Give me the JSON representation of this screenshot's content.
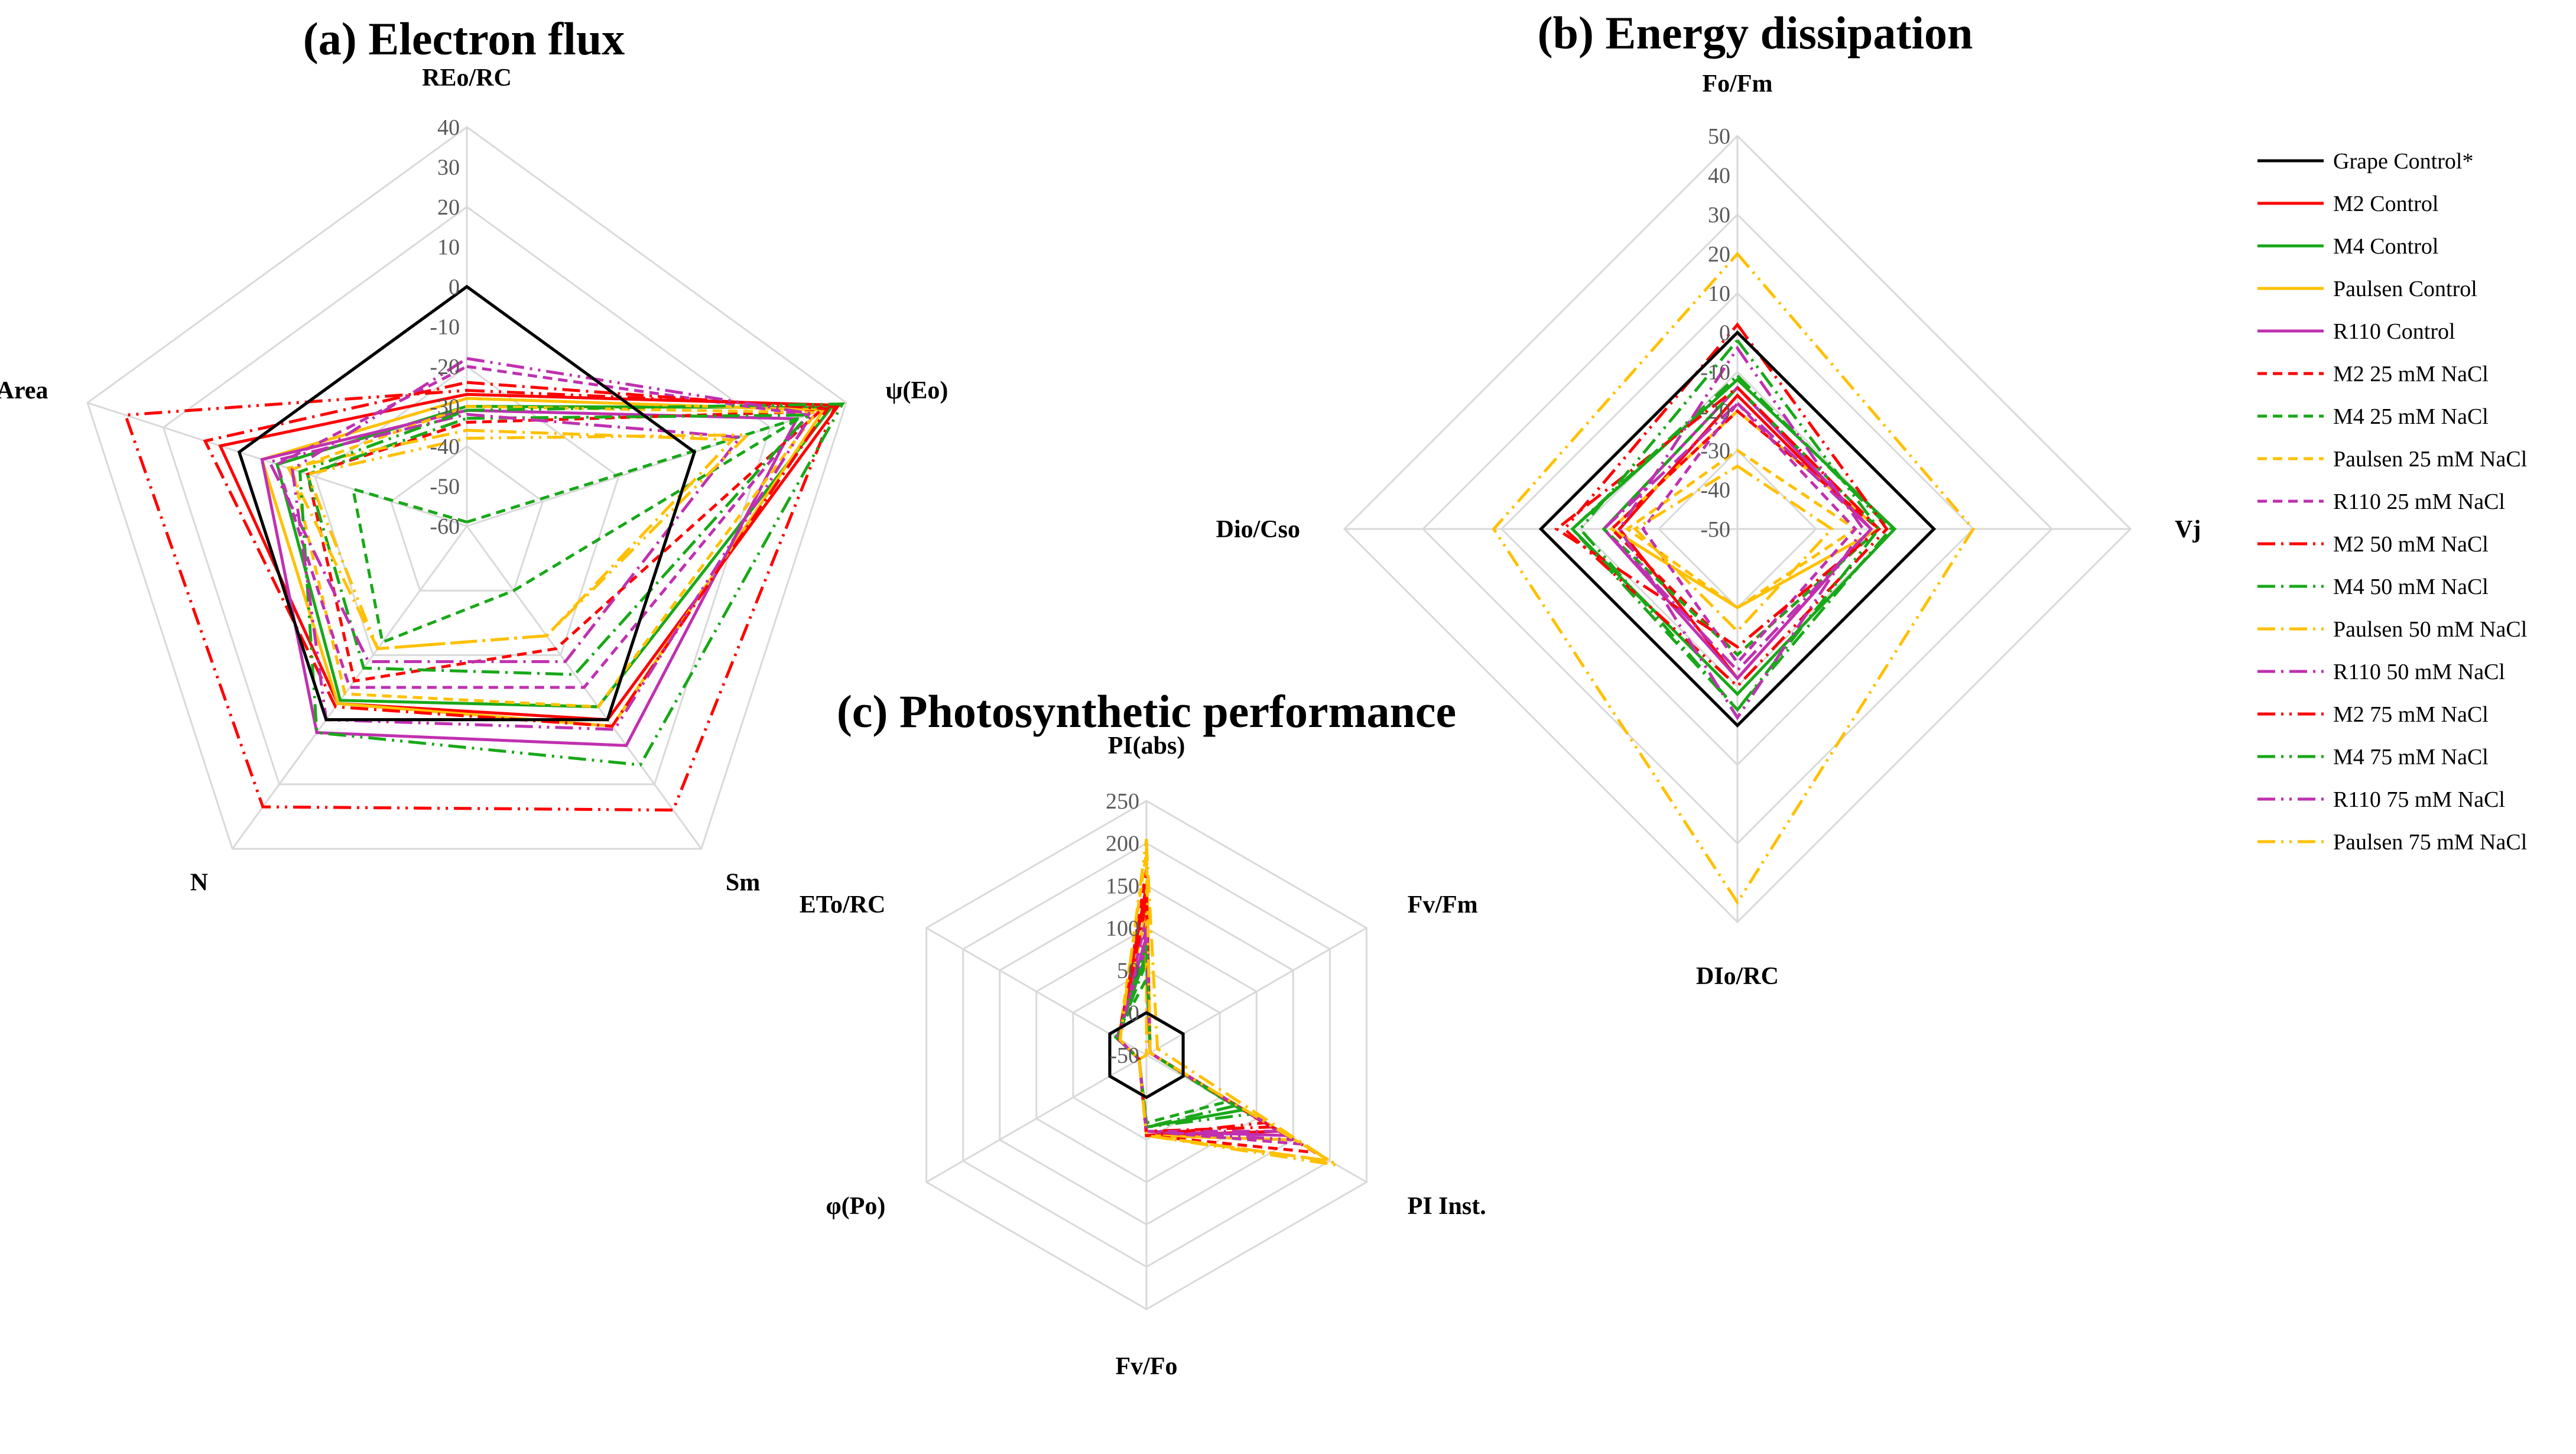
{
  "legend": [
    {
      "name": "Grape Control*",
      "color": "#000000",
      "dash": "solid"
    },
    {
      "name": "M2 Control",
      "color": "#ff0000",
      "dash": "solid"
    },
    {
      "name": "M4 Control",
      "color": "#18a818",
      "dash": "solid"
    },
    {
      "name": "Paulsen Control",
      "color": "#ffc000",
      "dash": "solid"
    },
    {
      "name": "R110 Control",
      "color": "#c030b0",
      "dash": "solid"
    },
    {
      "name": "M2 25 mM NaCl",
      "color": "#ff0000",
      "dash": "dash"
    },
    {
      "name": "M4 25 mM NaCl",
      "color": "#18a818",
      "dash": "dash"
    },
    {
      "name": "Paulsen 25 mM NaCl",
      "color": "#ffc000",
      "dash": "dash"
    },
    {
      "name": "R110 25 mM NaCl",
      "color": "#c030b0",
      "dash": "dash"
    },
    {
      "name": "M2 50 mM NaCl",
      "color": "#ff0000",
      "dash": "dashdot"
    },
    {
      "name": "M4 50 mM NaCl",
      "color": "#18a818",
      "dash": "dashdot"
    },
    {
      "name": "Paulsen 50 mM NaCl",
      "color": "#ffc000",
      "dash": "dashdot"
    },
    {
      "name": "R110 50 mM NaCl",
      "color": "#c030b0",
      "dash": "dashdot"
    },
    {
      "name": "M2 75 mM NaCl",
      "color": "#ff0000",
      "dash": "dashdotdot"
    },
    {
      "name": "M4 75 mM NaCl",
      "color": "#18a818",
      "dash": "dashdotdot"
    },
    {
      "name": "R110 75 mM NaCl",
      "color": "#c030b0",
      "dash": "dashdotdot"
    },
    {
      "name": "Paulsen 75 mM NaCl",
      "color": "#ffc000",
      "dash": "dashdotdot"
    }
  ],
  "chart_data": [
    {
      "id": "a",
      "type": "radar",
      "title": "(a) Electron flux",
      "axes": [
        "REo/RC",
        "ψ(Eo)",
        "Sm",
        "N",
        "Area"
      ],
      "ticks": [
        -60,
        -50,
        -40,
        -30,
        -20,
        -10,
        0,
        10,
        20,
        30,
        40
      ],
      "tick_labels": [
        "-60",
        "-50",
        "-40",
        "-30",
        "-20",
        "-10",
        "0",
        "10",
        "20",
        "30",
        "40"
      ],
      "range": [
        -60,
        40
      ],
      "rings": 5,
      "series": [
        {
          "name": "Grape Control*",
          "values": [
            0,
            0,
            0,
            0,
            0
          ]
        },
        {
          "name": "M2 Control",
          "values": [
            -27,
            38,
            0,
            -5,
            5
          ]
        },
        {
          "name": "M4 Control",
          "values": [
            -30,
            36,
            -4,
            -6,
            -10
          ]
        },
        {
          "name": "Paulsen Control",
          "values": [
            -28,
            34,
            2,
            -5,
            -6
          ]
        },
        {
          "name": "R110 Control",
          "values": [
            -31,
            27,
            8,
            4,
            -6
          ]
        },
        {
          "name": "M2 25 mM NaCl",
          "values": [
            -34,
            33,
            -22,
            -12,
            -18
          ]
        },
        {
          "name": "M4 25 mM NaCl",
          "values": [
            -59,
            28,
            -40,
            -24,
            -30
          ]
        },
        {
          "name": "Paulsen 25 mM NaCl",
          "values": [
            -30,
            32,
            -4,
            -8,
            -14
          ]
        },
        {
          "name": "R110 25 mM NaCl",
          "values": [
            -20,
            30,
            -10,
            -10,
            -10
          ]
        },
        {
          "name": "M2 50 mM NaCl",
          "values": [
            -24,
            35,
            2,
            -4,
            9
          ]
        },
        {
          "name": "M4 50 mM NaCl",
          "values": [
            -33,
            30,
            -14,
            -16,
            -18
          ]
        },
        {
          "name": "Paulsen 50 mM NaCl",
          "values": [
            -36,
            10,
            -26,
            -22,
            -13
          ]
        },
        {
          "name": "R110 50 mM NaCl",
          "values": [
            -32,
            12,
            -18,
            -18,
            -8
          ]
        },
        {
          "name": "M2 75 mM NaCl",
          "values": [
            -26,
            37,
            28,
            27,
            30
          ]
        },
        {
          "name": "M4 75 mM NaCl",
          "values": [
            -31,
            39,
            14,
            4,
            -16
          ]
        },
        {
          "name": "R110 75 mM NaCl",
          "values": [
            -18,
            31,
            3,
            0,
            -14
          ]
        },
        {
          "name": "Paulsen 75 mM NaCl",
          "values": [
            -38,
            14,
            -26,
            -22,
            -18
          ]
        }
      ]
    },
    {
      "id": "b",
      "type": "radar",
      "title": "(b) Energy dissipation",
      "axes": [
        "Fo/Fm",
        "Vj",
        "DIo/RC",
        "Dio/Cso"
      ],
      "ticks": [
        -50,
        -40,
        -30,
        -20,
        -10,
        0,
        10,
        20,
        30,
        40,
        50
      ],
      "tick_labels": [
        "-50",
        "-40",
        "-30",
        "-20",
        "-10",
        "0",
        "10",
        "20",
        "30",
        "40",
        "50"
      ],
      "range": [
        -50,
        50
      ],
      "rings": 5,
      "series": [
        {
          "name": "Grape Control*",
          "values": [
            0,
            0,
            0,
            0
          ]
        },
        {
          "name": "M2 Control",
          "values": [
            -16,
            -16,
            -12,
            -20
          ]
        },
        {
          "name": "M4 Control",
          "values": [
            -12,
            -10,
            -8,
            -8
          ]
        },
        {
          "name": "Paulsen Control",
          "values": [
            -20,
            -14,
            -30,
            -18
          ]
        },
        {
          "name": "R110 Control",
          "values": [
            -14,
            -16,
            -12,
            -16
          ]
        },
        {
          "name": "M2 25 mM NaCl",
          "values": [
            -20,
            -14,
            -18,
            -18
          ]
        },
        {
          "name": "M4 25 mM NaCl",
          "values": [
            -14,
            -14,
            -18,
            -16
          ]
        },
        {
          "name": "Paulsen 25 mM NaCl",
          "values": [
            -30,
            -20,
            -30,
            -22
          ]
        },
        {
          "name": "R110 25 mM NaCl",
          "values": [
            -18,
            -20,
            -16,
            -26
          ]
        },
        {
          "name": "M2 50 mM NaCl",
          "values": [
            -14,
            -14,
            -20,
            -4
          ]
        },
        {
          "name": "M4 50 mM NaCl",
          "values": [
            -11,
            -11,
            -4,
            -8
          ]
        },
        {
          "name": "Paulsen 50 mM NaCl",
          "values": [
            -34,
            -26,
            -24,
            -24
          ]
        },
        {
          "name": "R110 50 mM NaCl",
          "values": [
            -18,
            -16,
            -14,
            -16
          ]
        },
        {
          "name": "M2 75 mM NaCl",
          "values": [
            2,
            -12,
            -10,
            -6
          ]
        },
        {
          "name": "M4 75 mM NaCl",
          "values": [
            -2,
            -14,
            -4,
            -10
          ]
        },
        {
          "name": "R110 75 mM NaCl",
          "values": [
            -4,
            -18,
            -2,
            -20
          ]
        },
        {
          "name": "Paulsen 75 mM NaCl",
          "values": [
            20,
            10,
            45,
            12
          ]
        }
      ]
    },
    {
      "id": "c",
      "type": "radar",
      "title": "(c) Photosynthetic performance",
      "axes": [
        "PI(abs)",
        "Fv/Fm",
        "PI Inst.",
        "Fv/Fo",
        "φ(Po)",
        "ETo/RC"
      ],
      "ticks": [
        -50,
        0,
        50,
        100,
        150,
        200,
        250
      ],
      "tick_labels": [
        "-50",
        "0",
        "50",
        "100",
        "150",
        "200",
        "250"
      ],
      "range": [
        -50,
        250
      ],
      "rings": 6,
      "series": [
        {
          "name": "Grape Control*",
          "values": [
            0,
            0,
            0,
            0,
            0,
            0
          ]
        },
        {
          "name": "M2 Control",
          "values": [
            150,
            -45,
            130,
            45,
            -40,
            -12
          ]
        },
        {
          "name": "M4 Control",
          "values": [
            70,
            -45,
            80,
            35,
            -40,
            -10
          ]
        },
        {
          "name": "Paulsen Control",
          "values": [
            120,
            -45,
            150,
            45,
            -40,
            -12
          ]
        },
        {
          "name": "R110 Control",
          "values": [
            90,
            -45,
            140,
            40,
            -40,
            -10
          ]
        },
        {
          "name": "M2 25 mM NaCl",
          "values": [
            170,
            -45,
            180,
            45,
            -40,
            -14
          ]
        },
        {
          "name": "M4 25 mM NaCl",
          "values": [
            40,
            -45,
            60,
            30,
            -40,
            -8
          ]
        },
        {
          "name": "Paulsen 25 mM NaCl",
          "values": [
            190,
            -45,
            200,
            45,
            -40,
            -12
          ]
        },
        {
          "name": "R110 25 mM NaCl",
          "values": [
            110,
            -45,
            160,
            40,
            -40,
            -10
          ]
        },
        {
          "name": "M2 50 mM NaCl",
          "values": [
            130,
            -45,
            120,
            40,
            -40,
            -12
          ]
        },
        {
          "name": "M4 50 mM NaCl",
          "values": [
            60,
            -45,
            70,
            35,
            -40,
            -10
          ]
        },
        {
          "name": "Paulsen 50 mM NaCl",
          "values": [
            200,
            -35,
            200,
            45,
            -40,
            -50
          ]
        },
        {
          "name": "R110 50 mM NaCl",
          "values": [
            80,
            -45,
            130,
            40,
            -40,
            -10
          ]
        },
        {
          "name": "M2 75 mM NaCl",
          "values": [
            140,
            -45,
            110,
            45,
            -40,
            -12
          ]
        },
        {
          "name": "M4 75 mM NaCl",
          "values": [
            80,
            -45,
            90,
            35,
            -40,
            -10
          ]
        },
        {
          "name": "R110 75 mM NaCl",
          "values": [
            100,
            -45,
            150,
            40,
            -40,
            -12
          ]
        },
        {
          "name": "Paulsen 75 mM NaCl",
          "values": [
            205,
            -45,
            210,
            45,
            -40,
            -14
          ]
        }
      ]
    }
  ]
}
